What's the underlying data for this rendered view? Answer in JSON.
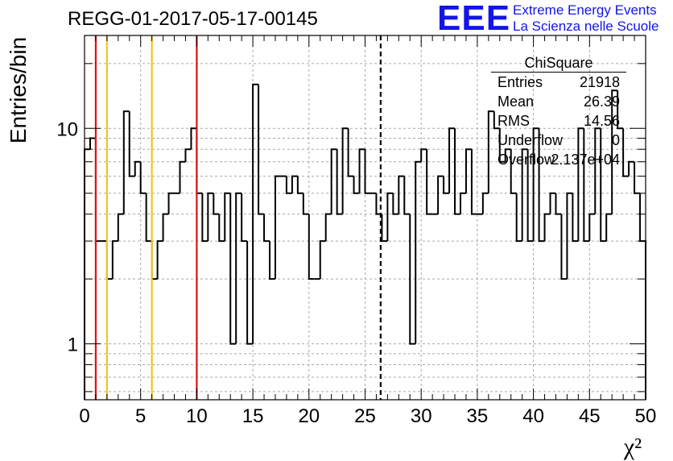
{
  "title": "REGG-01-2017-05-17-00145",
  "logo": {
    "mark": "EEE",
    "line1": "Extreme Energy Events",
    "line2": "La Scienza nelle Scuole",
    "color": "#1414e8"
  },
  "stats": {
    "title": "ChiSquare",
    "rows": [
      {
        "key": "Entries",
        "value": "21918"
      },
      {
        "key": "Mean",
        "value": "26.39"
      },
      {
        "key": "RMS",
        "value": "14.56"
      },
      {
        "key": "Underflow",
        "value": "0"
      },
      {
        "key": "Overflow",
        "value": "2.137e+04"
      }
    ]
  },
  "chart_data": {
    "type": "histogram",
    "title": "REGG-01-2017-05-17-00145",
    "xlabel": "χ²",
    "ylabel": "Entries/bin",
    "xlim": [
      0,
      50
    ],
    "ylim": [
      0.55,
      27
    ],
    "yscale": "log",
    "grid": true,
    "bin_width": 0.5,
    "x_ticks": [
      0,
      5,
      10,
      15,
      20,
      25,
      30,
      35,
      40,
      45,
      50
    ],
    "x_tick_labels": [
      "0",
      "5",
      "10",
      "15",
      "20",
      "25",
      "30",
      "35",
      "40",
      "45",
      "50"
    ],
    "y_ticks": [
      1,
      10
    ],
    "y_tick_labels": [
      "1",
      "10"
    ],
    "values": [
      8,
      9,
      3,
      3,
      2,
      3,
      4,
      12,
      6,
      7,
      5,
      3,
      2,
      3,
      4,
      5,
      5,
      7,
      8,
      10,
      5,
      3,
      5,
      4,
      3,
      5,
      1,
      5,
      3,
      1,
      16,
      4,
      3,
      2,
      6,
      6,
      5,
      6,
      5,
      4,
      2,
      2,
      3,
      4,
      8,
      4,
      10,
      6,
      5,
      8,
      5,
      5,
      4,
      3,
      5,
      4,
      6,
      4,
      1,
      7,
      8,
      4,
      4,
      6,
      5,
      10,
      4,
      5,
      8,
      4,
      4,
      5,
      12,
      10,
      7,
      8,
      5,
      3,
      8,
      3,
      10,
      3,
      4,
      5,
      4,
      2,
      5,
      3,
      10,
      3,
      4,
      10,
      3,
      4,
      15,
      10,
      6,
      7,
      5,
      3
    ],
    "vlines": [
      {
        "x": 1,
        "color": "#e01010",
        "style": "solid"
      },
      {
        "x": 2,
        "color": "#f2c51e",
        "style": "solid"
      },
      {
        "x": 6,
        "color": "#f2c51e",
        "style": "solid"
      },
      {
        "x": 10,
        "color": "#e01010",
        "style": "solid"
      },
      {
        "x": 26.39,
        "color": "#000000",
        "style": "dashed"
      }
    ]
  }
}
